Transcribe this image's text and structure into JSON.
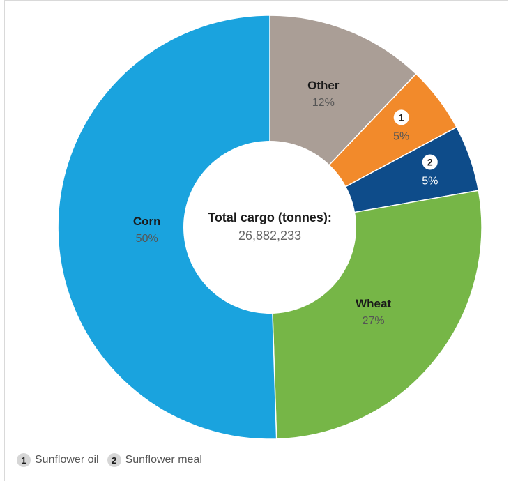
{
  "chart_data": {
    "type": "pie",
    "variant": "donut",
    "center_label": {
      "title": "Total cargo (tonnes):",
      "value": "26,882,233"
    },
    "slices": [
      {
        "key": "other",
        "label": "Other",
        "value": 12,
        "value_label": "12%",
        "color": "#aa9e96"
      },
      {
        "key": "sunflower-oil",
        "label": "",
        "badge": "1",
        "value": 5,
        "value_label": "5%",
        "color": "#f28a2b"
      },
      {
        "key": "sunflower-meal",
        "label": "",
        "badge": "2",
        "value": 5,
        "value_label": "5%",
        "color": "#0e4c8a"
      },
      {
        "key": "wheat",
        "label": "Wheat",
        "value": 27,
        "value_label": "27%",
        "color": "#76b647"
      },
      {
        "key": "corn",
        "label": "Corn",
        "value": 50,
        "value_label": "50%",
        "color": "#1aa3de"
      }
    ],
    "legend": [
      {
        "badge": "1",
        "label": "Sunflower oil"
      },
      {
        "badge": "2",
        "label": "Sunflower meal"
      }
    ]
  }
}
